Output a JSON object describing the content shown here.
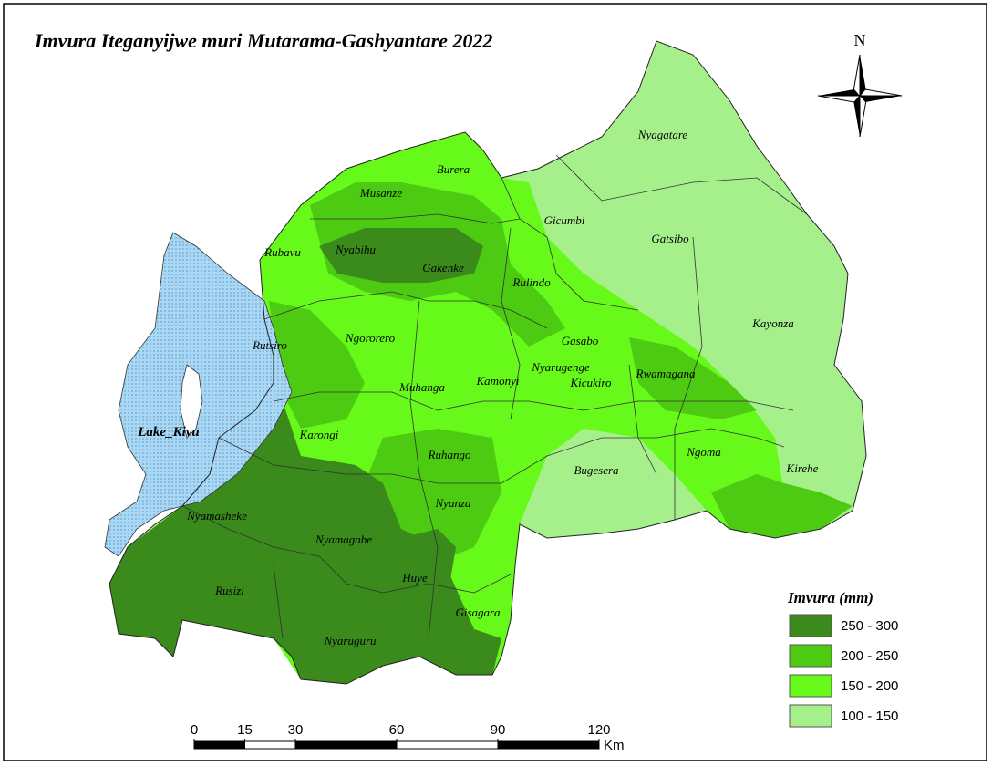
{
  "title": "Imvura Iteganyijwe muri Mutarama-Gashyantare 2022",
  "north": "N",
  "lake": "Lake_Kivu",
  "districts": [
    "Nyagatare",
    "Burera",
    "Musanze",
    "Gicumbi",
    "Gatsibo",
    "Rubavu",
    "Nyabihu",
    "Gakenke",
    "Rulindo",
    "Kayonza",
    "Rutsiro",
    "Ngororero",
    "Gasabo",
    "Nyarugenge",
    "Rwamagana",
    "Muhanga",
    "Kamonyi",
    "Kicukiro",
    "Karongi",
    "Ruhango",
    "Ngoma",
    "Kirehe",
    "Bugesera",
    "Nyanza",
    "Nyamasheke",
    "Nyamagabe",
    "Huye",
    "Rusizi",
    "Gisagara",
    "Nyaruguru"
  ],
  "legend": {
    "title": "Imvura (mm)",
    "items": [
      {
        "label": "250 - 300",
        "color": "#3a8a1c"
      },
      {
        "label": "200 - 250",
        "color": "#4ccb12"
      },
      {
        "label": "150 - 200",
        "color": "#66f91a"
      },
      {
        "label": "100 - 150",
        "color": "#a6f08c"
      }
    ]
  },
  "scale": {
    "ticks": [
      0,
      15,
      30,
      60,
      90,
      120
    ],
    "unit": "Km"
  }
}
